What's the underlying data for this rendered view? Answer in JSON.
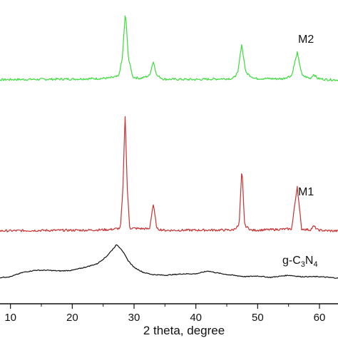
{
  "chart_data": {
    "type": "line",
    "title": "",
    "xlabel": "2 theta, degree",
    "ylabel": "",
    "xlim": [
      6,
      63
    ],
    "x_ticks": [
      10,
      20,
      30,
      40,
      50,
      60
    ],
    "x_tick_labels": [
      "10",
      "20",
      "30",
      "40",
      "50",
      "60"
    ],
    "grid": false,
    "legend": "inline labels at right",
    "series": [
      {
        "name": "M2",
        "color": "#3ddc3d",
        "label_parts": [
          "M2"
        ],
        "baseline": 112,
        "points": [
          [
            6,
            0
          ],
          [
            10,
            0.5
          ],
          [
            15,
            0.8
          ],
          [
            20,
            1.2
          ],
          [
            24,
            1.8
          ],
          [
            26,
            2.5
          ],
          [
            27.5,
            5
          ],
          [
            28.1,
            30
          ],
          [
            28.6,
            95
          ],
          [
            29.1,
            30
          ],
          [
            29.8,
            4
          ],
          [
            31,
            2
          ],
          [
            32.5,
            6
          ],
          [
            33.1,
            26
          ],
          [
            33.7,
            6
          ],
          [
            34.8,
            1
          ],
          [
            40,
            0.5
          ],
          [
            46,
            2
          ],
          [
            46.8,
            10
          ],
          [
            47.4,
            50
          ],
          [
            48.1,
            10
          ],
          [
            49.5,
            2
          ],
          [
            54,
            1.5
          ],
          [
            55.5,
            6
          ],
          [
            56.4,
            38
          ],
          [
            57.2,
            6
          ],
          [
            58.5,
            2
          ],
          [
            59.1,
            8
          ],
          [
            59.7,
            2
          ],
          [
            61,
            0.5
          ],
          [
            63,
            0
          ]
        ]
      },
      {
        "name": "M1",
        "color": "#c83232",
        "label_parts": [
          "M1"
        ],
        "baseline": 324,
        "points": [
          [
            6,
            0
          ],
          [
            14,
            0.8
          ],
          [
            22,
            1.2
          ],
          [
            26,
            2
          ],
          [
            27.8,
            4
          ],
          [
            28.2,
            60
          ],
          [
            28.55,
            165
          ],
          [
            28.9,
            60
          ],
          [
            29.3,
            4
          ],
          [
            32.5,
            3
          ],
          [
            33.1,
            38
          ],
          [
            33.7,
            3
          ],
          [
            35,
            1
          ],
          [
            46,
            1.5
          ],
          [
            47,
            8
          ],
          [
            47.45,
            88
          ],
          [
            47.9,
            8
          ],
          [
            49,
            1
          ],
          [
            55.5,
            3
          ],
          [
            56.4,
            63
          ],
          [
            57.1,
            3
          ],
          [
            58.5,
            1.5
          ],
          [
            59.1,
            7
          ],
          [
            59.7,
            1.5
          ],
          [
            61,
            0.5
          ],
          [
            63,
            0
          ]
        ]
      },
      {
        "name": "g-C3N4",
        "color": "#111111",
        "label_parts": [
          "g-C",
          "3",
          "N",
          "4"
        ],
        "baseline": 390,
        "points": [
          [
            6,
            0
          ],
          [
            8,
            0.5
          ],
          [
            10,
            2
          ],
          [
            12,
            8
          ],
          [
            14,
            11
          ],
          [
            16,
            11
          ],
          [
            18,
            10
          ],
          [
            20,
            11
          ],
          [
            22,
            15
          ],
          [
            24,
            20
          ],
          [
            25.5,
            30
          ],
          [
            26.5,
            40
          ],
          [
            27.2,
            47
          ],
          [
            28,
            40
          ],
          [
            29,
            25
          ],
          [
            30,
            15
          ],
          [
            31.5,
            8
          ],
          [
            33,
            5
          ],
          [
            35,
            4
          ],
          [
            38,
            6
          ],
          [
            40,
            6
          ],
          [
            42,
            10
          ],
          [
            43,
            8
          ],
          [
            45,
            5
          ],
          [
            48,
            2
          ],
          [
            50,
            3
          ],
          [
            52,
            1
          ],
          [
            55,
            4
          ],
          [
            57,
            2
          ],
          [
            60,
            2
          ],
          [
            63,
            0
          ]
        ]
      }
    ]
  }
}
